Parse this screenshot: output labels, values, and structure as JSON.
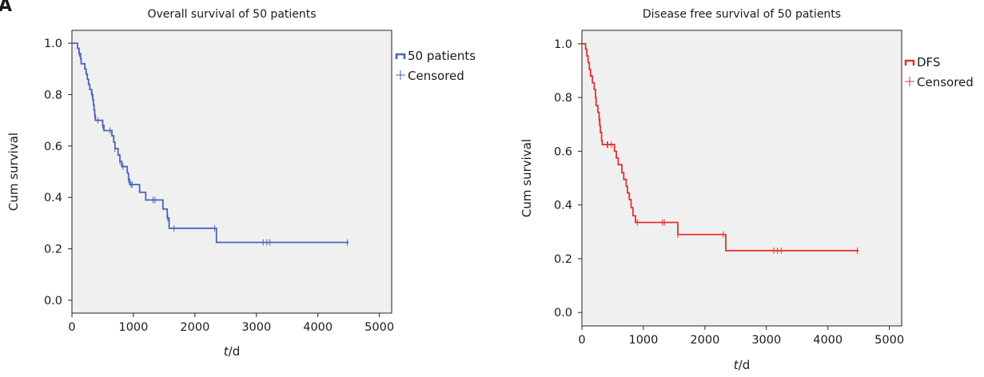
{
  "panel_label": "A",
  "chart_data": [
    {
      "type": "line",
      "subtype": "kaplan-meier-step",
      "title": "Overall survival of 50 patients",
      "xlabel": "t/d",
      "xlabel_parts": {
        "var": "t",
        "unit": "/d"
      },
      "ylabel": "Cum survival",
      "xlim": [
        0,
        5200
      ],
      "ylim": [
        -0.05,
        1.05
      ],
      "xticks": [
        0,
        1000,
        2000,
        3000,
        4000,
        5000
      ],
      "xtick_labels": [
        "0",
        "1000",
        "2000",
        "3000",
        "4000",
        "5000"
      ],
      "yticks": [
        0.0,
        0.2,
        0.4,
        0.6,
        0.8,
        1.0
      ],
      "ytick_labels": [
        "0.0",
        "0.2",
        "0.4",
        "0.6",
        "0.8",
        "1.0"
      ],
      "grid": false,
      "legend_position": "right-outside-top",
      "plot_background": "#f0f0f0",
      "series": [
        {
          "name": "50 patients",
          "color": "#4a63b7",
          "steps": [
            [
              0,
              1.0
            ],
            [
              90,
              0.98
            ],
            [
              115,
              0.96
            ],
            [
              140,
              0.94
            ],
            [
              150,
              0.92
            ],
            [
              210,
              0.9
            ],
            [
              230,
              0.88
            ],
            [
              250,
              0.86
            ],
            [
              270,
              0.84
            ],
            [
              290,
              0.82
            ],
            [
              320,
              0.8
            ],
            [
              340,
              0.78
            ],
            [
              350,
              0.76
            ],
            [
              360,
              0.74
            ],
            [
              370,
              0.72
            ],
            [
              380,
              0.7
            ],
            [
              500,
              0.68
            ],
            [
              520,
              0.66
            ],
            [
              650,
              0.64
            ],
            [
              680,
              0.615
            ],
            [
              700,
              0.59
            ],
            [
              750,
              0.565
            ],
            [
              780,
              0.54
            ],
            [
              810,
              0.52
            ],
            [
              900,
              0.495
            ],
            [
              920,
              0.47
            ],
            [
              940,
              0.45
            ],
            [
              1100,
              0.42
            ],
            [
              1200,
              0.39
            ],
            [
              1480,
              0.355
            ],
            [
              1550,
              0.32
            ],
            [
              1580,
              0.28
            ],
            [
              2350,
              0.225
            ],
            [
              4500,
              0.225
            ]
          ],
          "censored_x": [
            120,
            330,
            370,
            420,
            500,
            620,
            700,
            780,
            830,
            920,
            960,
            980,
            1320,
            1350,
            1560,
            1660,
            2320,
            3110,
            3170,
            3220,
            4480
          ]
        }
      ],
      "legend_censored": "Censored"
    },
    {
      "type": "line",
      "subtype": "kaplan-meier-step",
      "title": "Disease free survival of 50 patients",
      "xlabel": "t/d",
      "xlabel_parts": {
        "var": "t",
        "unit": "/d"
      },
      "ylabel": "Cum survival",
      "xlim": [
        0,
        5200
      ],
      "ylim": [
        -0.05,
        1.05
      ],
      "xticks": [
        0,
        1000,
        2000,
        3000,
        4000,
        5000
      ],
      "xtick_labels": [
        "0",
        "1000",
        "2000",
        "3000",
        "4000",
        "5000"
      ],
      "yticks": [
        0.0,
        0.2,
        0.4,
        0.6,
        0.8,
        1.0
      ],
      "ytick_labels": [
        "0.0",
        "0.2",
        "0.4",
        "0.6",
        "0.8",
        "1.0"
      ],
      "grid": false,
      "legend_position": "right-outside-top",
      "plot_background": "#f0f0f0",
      "series": [
        {
          "name": "DFS",
          "color": "#e63030",
          "steps": [
            [
              0,
              1.0
            ],
            [
              60,
              0.98
            ],
            [
              80,
              0.955
            ],
            [
              100,
              0.93
            ],
            [
              120,
              0.905
            ],
            [
              140,
              0.88
            ],
            [
              170,
              0.855
            ],
            [
              200,
              0.83
            ],
            [
              220,
              0.8
            ],
            [
              230,
              0.77
            ],
            [
              260,
              0.745
            ],
            [
              280,
              0.72
            ],
            [
              290,
              0.695
            ],
            [
              300,
              0.67
            ],
            [
              320,
              0.64
            ],
            [
              330,
              0.625
            ],
            [
              530,
              0.6
            ],
            [
              560,
              0.575
            ],
            [
              590,
              0.55
            ],
            [
              650,
              0.52
            ],
            [
              680,
              0.495
            ],
            [
              720,
              0.47
            ],
            [
              740,
              0.445
            ],
            [
              770,
              0.42
            ],
            [
              800,
              0.39
            ],
            [
              830,
              0.36
            ],
            [
              870,
              0.335
            ],
            [
              1560,
              0.29
            ],
            [
              2340,
              0.23
            ],
            [
              4500,
              0.23
            ]
          ],
          "censored_x": [
            280,
            410,
            420,
            480,
            900,
            1310,
            1340,
            1560,
            2300,
            3120,
            3180,
            3240,
            4480
          ]
        }
      ],
      "legend_censored": "Censored"
    }
  ]
}
